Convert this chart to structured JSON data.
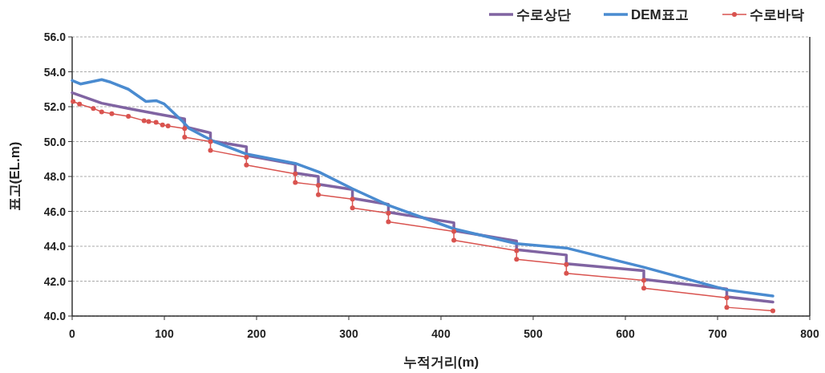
{
  "chart_data": {
    "type": "line",
    "xlabel": "누적거리(m)",
    "ylabel": "표고(EL.m)",
    "xlim": [
      0,
      800
    ],
    "xticks": [
      0,
      100,
      200,
      300,
      400,
      500,
      600,
      700,
      800
    ],
    "ylim": [
      40,
      56
    ],
    "yticks": [
      {
        "value": 40,
        "label": "40.0"
      },
      {
        "value": 42,
        "label": "42.0"
      },
      {
        "value": 44,
        "label": "44.0"
      },
      {
        "value": 46,
        "label": "46.0"
      },
      {
        "value": 48,
        "label": "48.0"
      },
      {
        "value": 50,
        "label": "50.0"
      },
      {
        "value": 52,
        "label": "52.0"
      },
      {
        "value": 54,
        "label": "54.0"
      },
      {
        "value": 56,
        "label": "56.0"
      }
    ],
    "grid": "y",
    "legend": "top right",
    "series": [
      {
        "name": "수로상단",
        "color": "#8064a2",
        "marker": "none",
        "x": [
          0,
          32,
          61,
          91,
          122,
          122,
          150,
          150,
          189,
          189,
          242,
          242,
          267,
          267,
          304,
          304,
          343,
          343,
          414,
          414,
          482,
          482,
          536,
          536,
          620,
          620,
          710,
          710,
          760
        ],
        "values": [
          52.8,
          52.2,
          51.9,
          51.6,
          51.3,
          50.85,
          50.5,
          50.05,
          49.7,
          49.2,
          48.7,
          48.2,
          48.0,
          47.55,
          47.25,
          46.75,
          46.4,
          45.95,
          45.35,
          44.9,
          44.3,
          43.8,
          43.5,
          43.0,
          42.6,
          42.1,
          41.55,
          41.1,
          40.8
        ]
      },
      {
        "name": "DEM표고",
        "color": "#4a8bd0",
        "marker": "none",
        "x": [
          0,
          9,
          32,
          42,
          61,
          80,
          91,
          100,
          119,
          127,
          154,
          188,
          242,
          268,
          304,
          343,
          414,
          482,
          536,
          620,
          710,
          760
        ],
        "values": [
          53.5,
          53.3,
          53.55,
          53.4,
          53.0,
          52.3,
          52.35,
          52.15,
          51.2,
          50.75,
          50.0,
          49.3,
          48.75,
          48.25,
          47.3,
          46.35,
          45.0,
          44.15,
          43.9,
          42.8,
          41.5,
          41.15
        ]
      },
      {
        "name": "수로바닥",
        "color": "#d9534f",
        "marker": "circle",
        "x": [
          1,
          8,
          23,
          32,
          43,
          61,
          78,
          83,
          91,
          98,
          104,
          122,
          122,
          150,
          150,
          189,
          189,
          242,
          242,
          267,
          267,
          304,
          304,
          343,
          343,
          414,
          414,
          482,
          482,
          536,
          536,
          620,
          620,
          710,
          710,
          760
        ],
        "values": [
          52.3,
          52.15,
          51.9,
          51.7,
          51.6,
          51.45,
          51.2,
          51.15,
          51.1,
          50.95,
          50.9,
          50.75,
          50.25,
          50.0,
          49.5,
          49.1,
          48.65,
          48.15,
          47.65,
          47.5,
          46.95,
          46.7,
          46.2,
          45.9,
          45.4,
          44.85,
          44.35,
          43.75,
          43.25,
          42.95,
          42.45,
          42.05,
          41.6,
          41.05,
          40.5,
          40.3
        ]
      }
    ]
  }
}
